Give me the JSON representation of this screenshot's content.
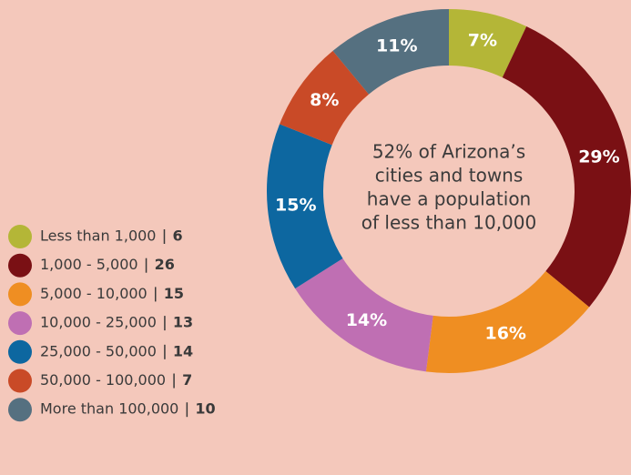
{
  "chart_data": {
    "type": "donut",
    "categories": [
      "Less than 1,000",
      "1,000 - 5,000",
      "5,000 - 10,000",
      "10,000 - 25,000",
      "25,000 - 50,000",
      "50,000 - 100,000",
      "More than 100,000"
    ],
    "values": [
      7,
      29,
      16,
      14,
      15,
      8,
      11
    ],
    "value_labels": [
      "7%",
      "29%",
      "16%",
      "14%",
      "15%",
      "8%",
      "11%"
    ],
    "counts": [
      6,
      26,
      15,
      13,
      14,
      7,
      10
    ],
    "colors": [
      "#b4b637",
      "#7a1014",
      "#ef8e22",
      "#bf6fb3",
      "#0d67a0",
      "#c94a27",
      "#557080"
    ],
    "center_text": [
      "52% of Arizona’s",
      "cities and towns",
      "have a population",
      "of less than 10,000"
    ],
    "legend": "bottom-left"
  }
}
